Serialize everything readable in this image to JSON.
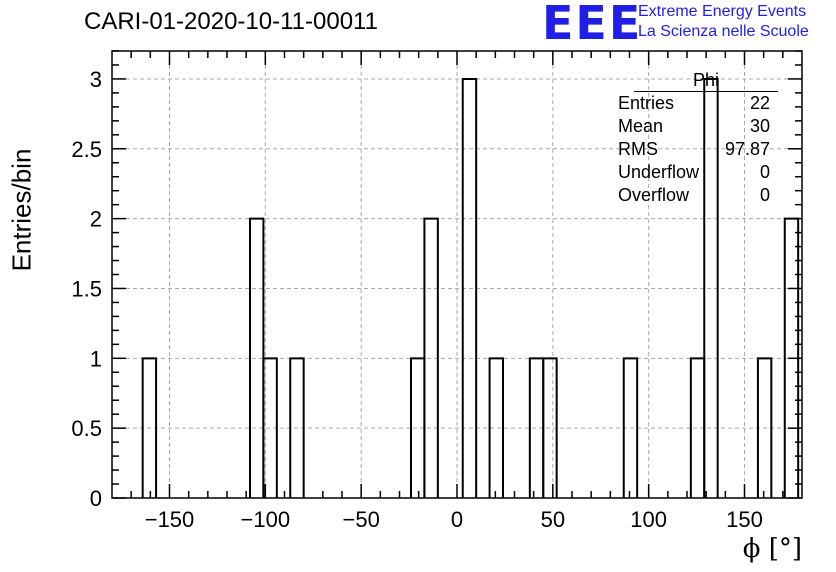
{
  "header": {
    "title": "CARI-01-2020-10-11-00011",
    "logo": "EEE",
    "tagline_1": "Extreme Energy Events",
    "tagline_2": "La Scienza nelle Scuole",
    "brand_color": "#1f1fe6"
  },
  "stats_box": {
    "name": "Phi",
    "rows": [
      {
        "label": "Entries",
        "value": "22"
      },
      {
        "label": "Mean",
        "value": "30"
      },
      {
        "label": "RMS",
        "value": "97.87"
      },
      {
        "label": "Underflow",
        "value": "0"
      },
      {
        "label": "Overflow",
        "value": "0"
      }
    ]
  },
  "chart_data": {
    "type": "bar",
    "title": "CARI-01-2020-10-11-00011",
    "xlabel": "ϕ [°]",
    "ylabel": "Entries/bin",
    "xlim": [
      -180,
      180
    ],
    "ylim": [
      0,
      3.2
    ],
    "grid": true,
    "bin_width": 7,
    "bin_edges_start": -164,
    "bins": [
      {
        "x": -164,
        "value": 1
      },
      {
        "x": -108,
        "value": 2
      },
      {
        "x": -101,
        "value": 1
      },
      {
        "x": -87,
        "value": 1
      },
      {
        "x": -24,
        "value": 1
      },
      {
        "x": -17,
        "value": 2
      },
      {
        "x": 3,
        "value": 3
      },
      {
        "x": 17,
        "value": 1
      },
      {
        "x": 38,
        "value": 1
      },
      {
        "x": 45,
        "value": 1
      },
      {
        "x": 87,
        "value": 1
      },
      {
        "x": 122,
        "value": 1
      },
      {
        "x": 129,
        "value": 3
      },
      {
        "x": 157,
        "value": 1
      },
      {
        "x": 171,
        "value": 2
      }
    ],
    "x_ticks": [
      -150,
      -100,
      -50,
      0,
      50,
      100,
      150
    ],
    "x_tick_labels": [
      "−150",
      "−100",
      "−50",
      "0",
      "50",
      "100",
      "150"
    ],
    "y_ticks": [
      0,
      0.5,
      1,
      1.5,
      2,
      2.5,
      3
    ],
    "y_tick_labels": [
      "0",
      "0.5",
      "1",
      "1.5",
      "2",
      "2.5",
      "3"
    ]
  }
}
